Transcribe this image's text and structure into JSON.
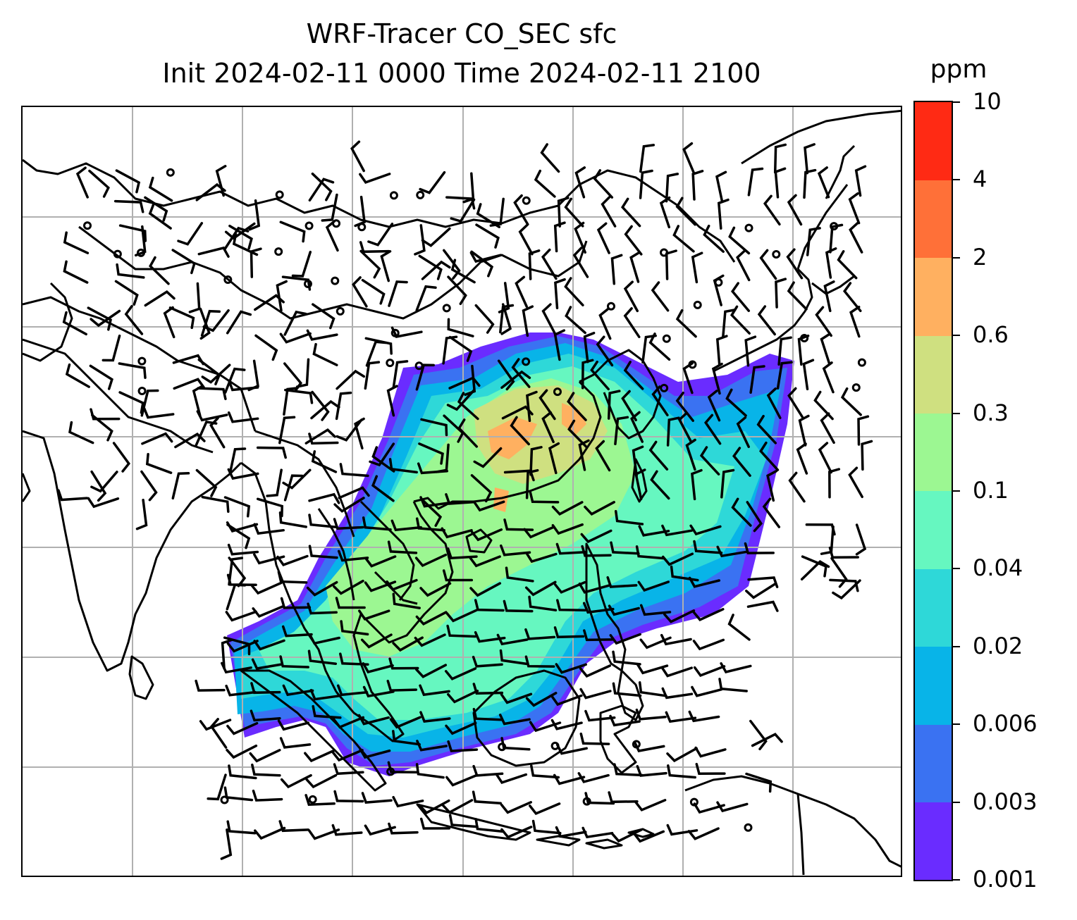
{
  "title": {
    "line1": "WRF-Tracer CO_SEC sfc",
    "line2": "Init 2024-02-11 0000 Time 2024-02-11 2100"
  },
  "colorbar": {
    "unit": "ppm",
    "ticks": [
      "10",
      "4",
      "2",
      "0.6",
      "0.3",
      "0.1",
      "0.04",
      "0.02",
      "0.006",
      "0.003",
      "0.001"
    ],
    "colors": [
      "#6a2cff",
      "#3a72f2",
      "#08b4e8",
      "#2ed8d8",
      "#66f7c0",
      "#9cf792",
      "#cfe080",
      "#ffb060",
      "#ff7038",
      "#ff2a14"
    ]
  },
  "map": {
    "gridlines": true,
    "gridline_color": "#b0b0b0",
    "coastline_color": "#000000",
    "field": "CO_SEC surface tracer concentration",
    "overlay": "wind barbs"
  }
}
